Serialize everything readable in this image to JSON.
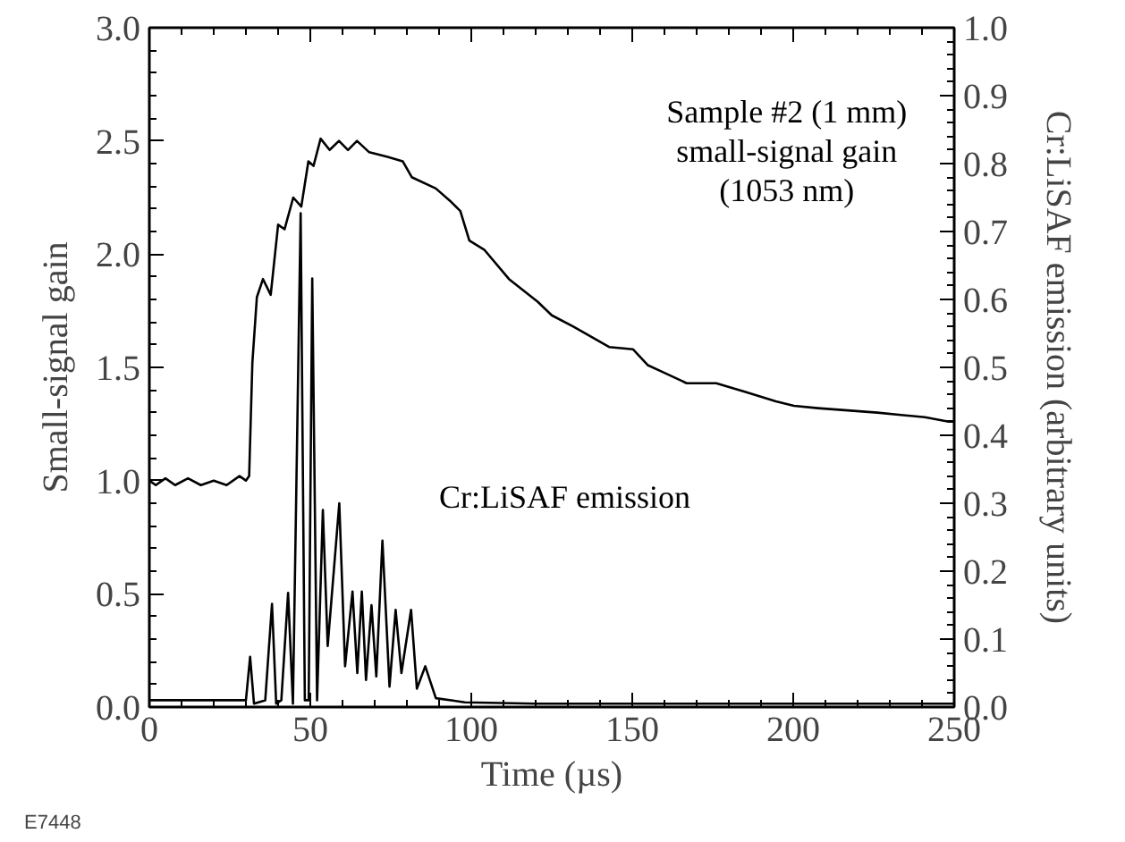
{
  "chart_data": {
    "type": "line",
    "xlabel": "Time (µs)",
    "ylabel": "Small-signal gain",
    "y2label": "Cr:LiSAF emission (arbitrary units)",
    "xlim": [
      0,
      250
    ],
    "xticks": [
      0,
      50,
      100,
      150,
      200,
      250
    ],
    "ylim": [
      0,
      3
    ],
    "yticks": [
      {
        "value": 0,
        "label": "0.0"
      },
      {
        "value": 0.5,
        "label": "0.5"
      },
      {
        "value": 1,
        "label": "1.0"
      },
      {
        "value": 1.5,
        "label": "1.5"
      },
      {
        "value": 2,
        "label": "2.0"
      },
      {
        "value": 2.5,
        "label": "2.5"
      },
      {
        "value": 3,
        "label": "3.0"
      }
    ],
    "y2lim": [
      0,
      1
    ],
    "y2ticks": [
      {
        "value": 0,
        "label": "0.0"
      },
      {
        "value": 0.1,
        "label": "0.1"
      },
      {
        "value": 0.2,
        "label": "0.2"
      },
      {
        "value": 0.3,
        "label": "0.3"
      },
      {
        "value": 0.4,
        "label": "0.4"
      },
      {
        "value": 0.5,
        "label": "0.5"
      },
      {
        "value": 0.6,
        "label": "0.6"
      },
      {
        "value": 0.7,
        "label": "0.7"
      },
      {
        "value": 0.8,
        "label": "0.8"
      },
      {
        "value": 0.9,
        "label": "0.9"
      },
      {
        "value": 1,
        "label": "1.0"
      }
    ],
    "grid": false,
    "marker": "none",
    "line_style": "solid",
    "series": [
      {
        "name": "Sample #2 (1 mm)\nsmall-signal gain\n(1053 nm)",
        "color": "#000000",
        "x": [
          0,
          2,
          5,
          8,
          12,
          16,
          20,
          24,
          28,
          30,
          31,
          32,
          33.4,
          35.3,
          37.7,
          40,
          42,
          44.7,
          47.2,
          49.4,
          51,
          53.2,
          56,
          58.9,
          61.7,
          64.5,
          68.3,
          74,
          78.7,
          81.5,
          89,
          93.8,
          96.6,
          99.4,
          104,
          111.7,
          120.6,
          125,
          131.7,
          142.8,
          150.2,
          154.8,
          159.4,
          166.9,
          176.1,
          185.4,
          194.6,
          200.2,
          207.6,
          216.9,
          226.1,
          233.5,
          240.9,
          248.3,
          250
        ],
        "values": [
          1.0,
          0.98,
          1.01,
          0.98,
          1.01,
          0.98,
          1.0,
          0.98,
          1.02,
          1.0,
          1.02,
          1.52,
          1.81,
          1.89,
          1.82,
          2.13,
          2.11,
          2.25,
          2.21,
          2.41,
          2.39,
          2.51,
          2.46,
          2.5,
          2.46,
          2.5,
          2.45,
          2.43,
          2.41,
          2.34,
          2.29,
          2.23,
          2.19,
          2.06,
          2.02,
          1.89,
          1.79,
          1.73,
          1.68,
          1.59,
          1.58,
          1.51,
          1.48,
          1.43,
          1.43,
          1.39,
          1.35,
          1.33,
          1.32,
          1.31,
          1.3,
          1.29,
          1.28,
          1.26,
          1.26
        ]
      },
      {
        "name": "Cr:LiSAF emission",
        "color": "#000000",
        "axis": "y2",
        "x": [
          0,
          10,
          20,
          30,
          31.3,
          32.5,
          36,
          38.1,
          39.4,
          41,
          43.1,
          44.6,
          47,
          48.3,
          49.5,
          50.6,
          52.1,
          53.9,
          55.4,
          59,
          60.8,
          63.1,
          64.6,
          66,
          67.3,
          69,
          70.5,
          72.4,
          74.6,
          76.5,
          78.3,
          81.3,
          83.1,
          85.7,
          89,
          98,
          120,
          150,
          180,
          210,
          250
        ],
        "values": [
          0.01,
          0.01,
          0.01,
          0.01,
          0.074,
          0.005,
          0.01,
          0.152,
          0.005,
          0.01,
          0.168,
          0.005,
          0.727,
          0.01,
          0.01,
          0.631,
          0.01,
          0.29,
          0.09,
          0.3,
          0.06,
          0.17,
          0.05,
          0.17,
          0.04,
          0.15,
          0.045,
          0.245,
          0.03,
          0.143,
          0.05,
          0.143,
          0.027,
          0.06,
          0.013,
          0.007,
          0.005,
          0.005,
          0.005,
          0.005,
          0.005
        ]
      }
    ],
    "annotations": [
      "E7448"
    ]
  }
}
